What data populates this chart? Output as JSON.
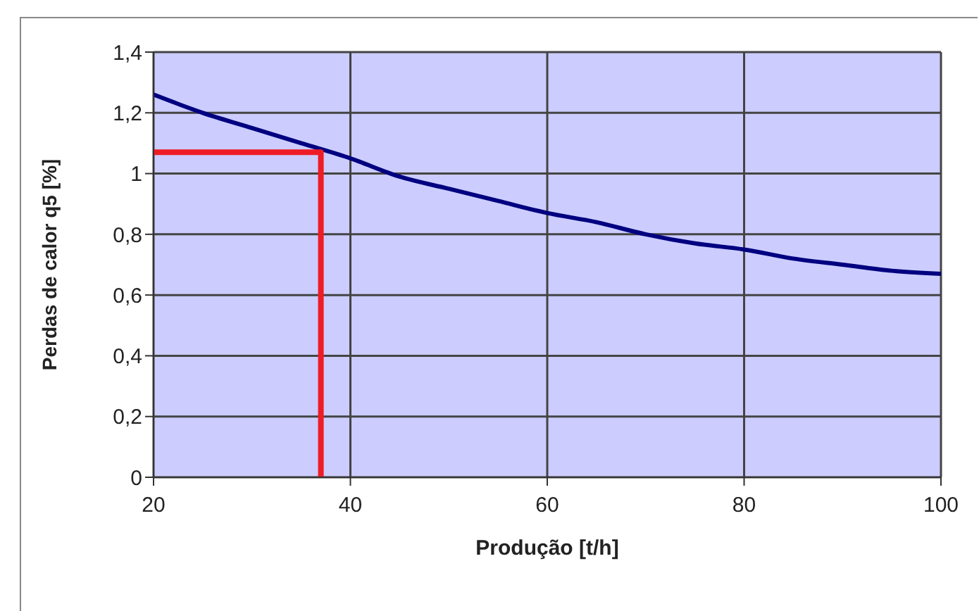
{
  "chart_data": {
    "type": "line",
    "xlabel": "Produção [t/h]",
    "ylabel": "Perdas de calor q5 [%]",
    "xlim": [
      20,
      100
    ],
    "xticks": [
      20,
      40,
      60,
      80,
      100
    ],
    "ylim": [
      0,
      1.4
    ],
    "yticks": [
      0,
      {
        "value": 0.2,
        "label": "0,2"
      },
      {
        "value": 0.4,
        "label": "0,4"
      },
      {
        "value": 0.6,
        "label": "0,6"
      },
      {
        "value": 0.8,
        "label": "0,8"
      },
      1,
      {
        "value": 1.2,
        "label": "1,2"
      },
      {
        "value": 1.4,
        "label": "1,4"
      }
    ],
    "grid": true,
    "marker": "none",
    "line_style": "solid",
    "series": [
      {
        "color": "#000080",
        "x": [
          20,
          25,
          30,
          35,
          40,
          45,
          50,
          55,
          60,
          65,
          70,
          75,
          80,
          85,
          90,
          95,
          100
        ],
        "values": [
          1.26,
          1.2,
          1.15,
          1.1,
          1.05,
          0.99,
          0.95,
          0.91,
          0.87,
          0.84,
          0.8,
          0.77,
          0.75,
          0.72,
          0.7,
          0.68,
          0.67
        ]
      },
      {
        "color": "#ee1c25",
        "x": [
          20,
          37,
          37
        ],
        "values": [
          1.07,
          1.07,
          0
        ]
      }
    ]
  }
}
